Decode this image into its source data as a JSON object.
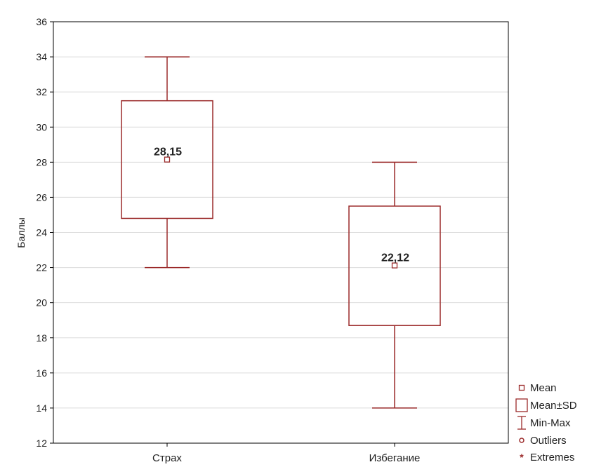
{
  "chart_data": {
    "type": "box",
    "title": "",
    "xlabel": "",
    "ylabel": "Баллы",
    "ylim": [
      12,
      36
    ],
    "yticks": [
      12,
      14,
      16,
      18,
      20,
      22,
      24,
      26,
      28,
      30,
      32,
      34,
      36
    ],
    "grid": true,
    "categories": [
      "Страх",
      "Избегание"
    ],
    "boxes": [
      {
        "category": "Страх",
        "min": 22,
        "max": 34,
        "mean": 28.15,
        "mean_minus_sd": 24.8,
        "mean_plus_sd": 31.5,
        "label": "28,15"
      },
      {
        "category": "Избегание",
        "min": 14,
        "max": 28,
        "mean": 22.12,
        "mean_minus_sd": 18.7,
        "mean_plus_sd": 25.5,
        "label": "22,12"
      }
    ],
    "legend": {
      "placement": "bottom-right",
      "items": [
        {
          "symbol": "small-square",
          "label": "Mean"
        },
        {
          "symbol": "box",
          "label": "Mean±SD"
        },
        {
          "symbol": "whisker",
          "label": "Min-Max"
        },
        {
          "symbol": "circle",
          "label": "Outliers"
        },
        {
          "symbol": "asterisk",
          "label": "Extremes"
        }
      ]
    },
    "colors": {
      "box": "#9b2a2a",
      "grid": "#dcdcdc",
      "axis": "#000000",
      "text": "#222222"
    }
  }
}
